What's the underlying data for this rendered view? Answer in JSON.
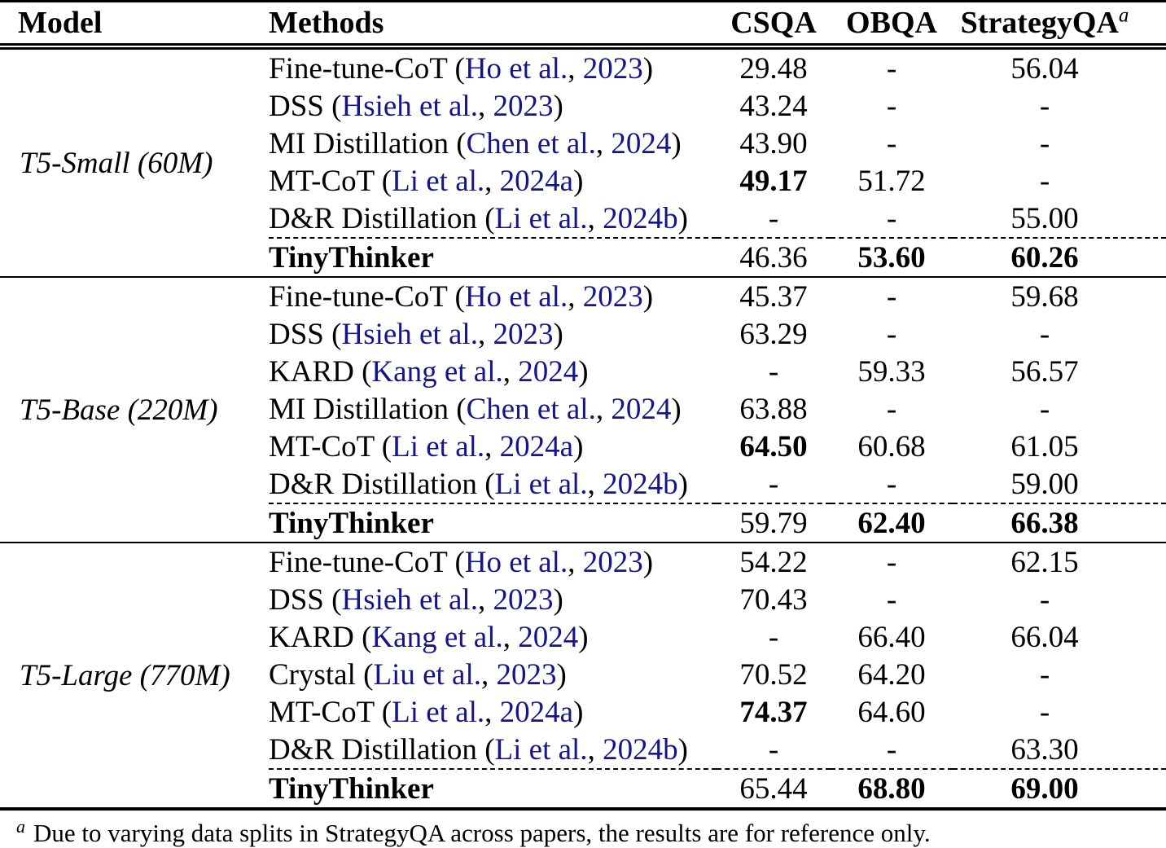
{
  "table": {
    "header": {
      "model": "Model",
      "methods": "Methods",
      "csqa": "CSQA",
      "obqa": "OBQA",
      "strategyqa": "StrategyQA",
      "strategyqa_sup": "a"
    },
    "cite_color": "#15158a",
    "sections": [
      {
        "model": "T5-Small (60M)",
        "rows": [
          {
            "name": "Fine-tune-CoT",
            "cite_authors": "Ho et al.",
            "cite_year": "2023",
            "values": [
              "29.48",
              "-",
              "56.04"
            ],
            "bold": [
              false,
              false,
              false
            ]
          },
          {
            "name": "DSS",
            "cite_authors": "Hsieh et al.",
            "cite_year": "2023",
            "values": [
              "43.24",
              "-",
              "-"
            ],
            "bold": [
              false,
              false,
              false
            ]
          },
          {
            "name": "MI Distillation",
            "cite_authors": "Chen et al.",
            "cite_year": "2024",
            "values": [
              "43.90",
              "-",
              "-"
            ],
            "bold": [
              false,
              false,
              false
            ]
          },
          {
            "name": "MT-CoT",
            "cite_authors": "Li et al.",
            "cite_year": "2024a",
            "values": [
              "49.17",
              "51.72",
              "-"
            ],
            "bold": [
              true,
              false,
              false
            ]
          },
          {
            "name": "D&R Distillation",
            "cite_authors": "Li et al.",
            "cite_year": "2024b",
            "values": [
              "-",
              "-",
              "55.00"
            ],
            "bold": [
              false,
              false,
              false
            ]
          }
        ],
        "tinythinker": {
          "name": "TinyThinker",
          "values": [
            "46.36",
            "53.60",
            "60.26"
          ],
          "bold": [
            false,
            true,
            true
          ]
        }
      },
      {
        "model": "T5-Base (220M)",
        "rows": [
          {
            "name": "Fine-tune-CoT",
            "cite_authors": "Ho et al.",
            "cite_year": "2023",
            "values": [
              "45.37",
              "-",
              "59.68"
            ],
            "bold": [
              false,
              false,
              false
            ]
          },
          {
            "name": "DSS",
            "cite_authors": "Hsieh et al.",
            "cite_year": "2023",
            "values": [
              "63.29",
              "-",
              "-"
            ],
            "bold": [
              false,
              false,
              false
            ]
          },
          {
            "name": "KARD",
            "cite_authors": "Kang et al.",
            "cite_year": "2024",
            "values": [
              "-",
              "59.33",
              "56.57"
            ],
            "bold": [
              false,
              false,
              false
            ]
          },
          {
            "name": "MI Distillation",
            "cite_authors": "Chen et al.",
            "cite_year": "2024",
            "values": [
              "63.88",
              "-",
              "-"
            ],
            "bold": [
              false,
              false,
              false
            ]
          },
          {
            "name": "MT-CoT",
            "cite_authors": "Li et al.",
            "cite_year": "2024a",
            "values": [
              "64.50",
              "60.68",
              "61.05"
            ],
            "bold": [
              true,
              false,
              false
            ]
          },
          {
            "name": "D&R Distillation",
            "cite_authors": "Li et al.",
            "cite_year": "2024b",
            "values": [
              "-",
              "-",
              "59.00"
            ],
            "bold": [
              false,
              false,
              false
            ]
          }
        ],
        "tinythinker": {
          "name": "TinyThinker",
          "values": [
            "59.79",
            "62.40",
            "66.38"
          ],
          "bold": [
            false,
            true,
            true
          ]
        }
      },
      {
        "model": "T5-Large (770M)",
        "rows": [
          {
            "name": "Fine-tune-CoT",
            "cite_authors": "Ho et al.",
            "cite_year": "2023",
            "values": [
              "54.22",
              "-",
              "62.15"
            ],
            "bold": [
              false,
              false,
              false
            ]
          },
          {
            "name": "DSS",
            "cite_authors": "Hsieh et al.",
            "cite_year": "2023",
            "values": [
              "70.43",
              "-",
              "-"
            ],
            "bold": [
              false,
              false,
              false
            ]
          },
          {
            "name": "KARD",
            "cite_authors": "Kang et al.",
            "cite_year": "2024",
            "values": [
              "-",
              "66.40",
              "66.04"
            ],
            "bold": [
              false,
              false,
              false
            ]
          },
          {
            "name": "Crystal",
            "cite_authors": "Liu et al.",
            "cite_year": "2023",
            "values": [
              "70.52",
              "64.20",
              "-"
            ],
            "bold": [
              false,
              false,
              false
            ]
          },
          {
            "name": "MT-CoT",
            "cite_authors": "Li et al.",
            "cite_year": "2024a",
            "values": [
              "74.37",
              "64.60",
              "-"
            ],
            "bold": [
              true,
              false,
              false
            ]
          },
          {
            "name": "D&R Distillation",
            "cite_authors": "Li et al.",
            "cite_year": "2024b",
            "values": [
              "-",
              "-",
              "63.30"
            ],
            "bold": [
              false,
              false,
              false
            ]
          }
        ],
        "tinythinker": {
          "name": "TinyThinker",
          "values": [
            "65.44",
            "68.80",
            "69.00"
          ],
          "bold": [
            false,
            true,
            true
          ]
        }
      }
    ],
    "footnote": {
      "sup": "a",
      "text": "Due to varying data splits in StrategyQA across papers, the results are for reference only."
    }
  }
}
